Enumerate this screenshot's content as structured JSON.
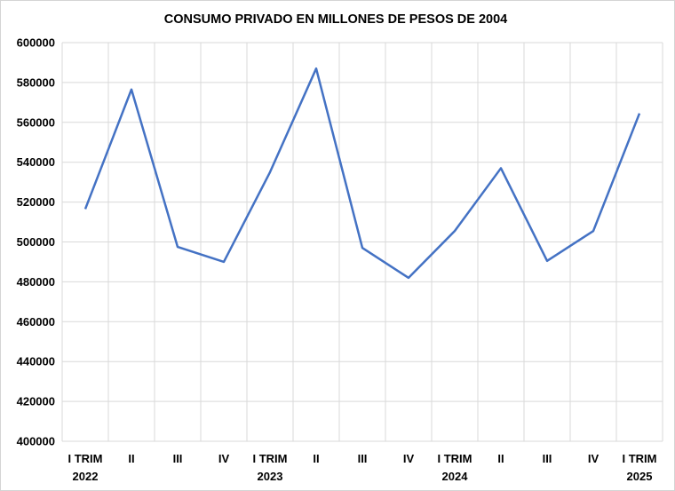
{
  "chart_data": {
    "type": "line",
    "title": "CONSUMO PRIVADO EN MILLONES DE PESOS DE 2004",
    "xlabel": "",
    "ylabel": "",
    "categories": [
      [
        "I TRIM",
        "2022"
      ],
      [
        "II",
        ""
      ],
      [
        "III",
        ""
      ],
      [
        "IV",
        ""
      ],
      [
        "I TRIM",
        "2023"
      ],
      [
        "II",
        ""
      ],
      [
        "III",
        ""
      ],
      [
        "IV",
        ""
      ],
      [
        "I TRIM",
        "2024"
      ],
      [
        "II",
        ""
      ],
      [
        "III",
        ""
      ],
      [
        "IV",
        ""
      ],
      [
        "I TRIM",
        "2025"
      ]
    ],
    "series": [
      {
        "color": "#4472c4",
        "values": [
          516500,
          576500,
          497500,
          490000,
          535000,
          587000,
          497000,
          482000,
          505500,
          537000,
          490500,
          505500,
          564500
        ]
      }
    ],
    "ylim": [
      400000,
      600000
    ],
    "yticks": [
      400000,
      420000,
      440000,
      460000,
      480000,
      500000,
      520000,
      540000,
      560000,
      580000,
      600000
    ],
    "grid": true,
    "legend": "none"
  }
}
